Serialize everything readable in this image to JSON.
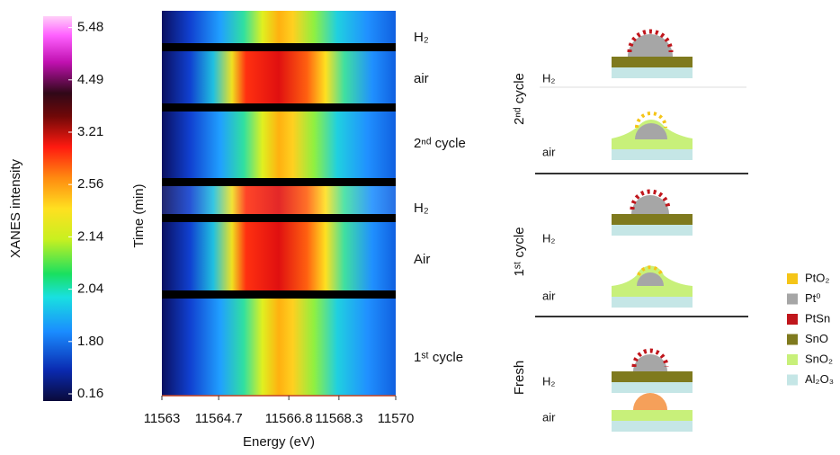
{
  "chart_data": {
    "type": "heatmap",
    "colorbar_label": "XANES intensity",
    "colorbar_ticks": [
      0.16,
      {
        "value": 1.8,
        "label": "1.80"
      },
      2.04,
      2.14,
      2.56,
      3.21,
      4.49,
      5.48
    ],
    "ylabel": "Time (min)",
    "xlabel": "Energy (eV)",
    "xlim": [
      11563,
      11570
    ],
    "xticks": [
      11563,
      11564.7,
      11566.8,
      11568.3,
      11570
    ],
    "band_labels": [
      "H₂",
      "air",
      "2ⁿᵈ cycle",
      "H₂",
      "Air",
      "1ˢᵗ cycle"
    ]
  },
  "schematic": {
    "stages": [
      {
        "label": "2ⁿᵈ cycle",
        "top": "H₂",
        "bottom": "air"
      },
      {
        "label": "1ˢᵗ cycle",
        "top": "H₂",
        "bottom": "air"
      },
      {
        "label": "Fresh",
        "top": "H₂",
        "bottom": "air"
      }
    ],
    "legend": [
      {
        "name": "PtO₂",
        "color": "#f5c518"
      },
      {
        "name": "Pt⁰",
        "color": "#a6a6a6"
      },
      {
        "name": "PtSn",
        "color": "#c0161c"
      },
      {
        "name": "SnO",
        "color": "#7f7a1e"
      },
      {
        "name": "SnO₂",
        "color": "#c8f07a"
      },
      {
        "name": "Al₂O₃",
        "color": "#c5e6e6"
      }
    ]
  }
}
